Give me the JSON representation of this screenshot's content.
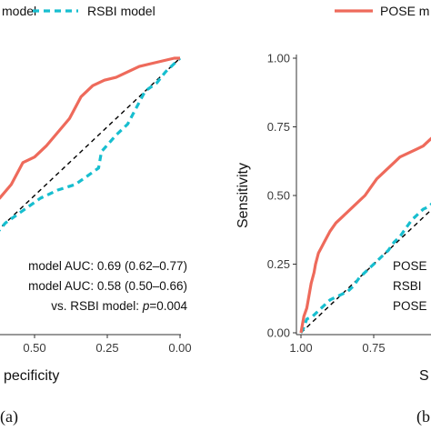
{
  "colors": {
    "pose": "#EE6A5B",
    "rsbi": "#17BECF",
    "chance": "#000000",
    "axis": "#333333"
  },
  "chart_data": [
    {
      "type": "line",
      "panel_label": "(a)",
      "legend": [
        {
          "label": "model",
          "series": "pose"
        },
        {
          "label": "RSBI model",
          "series": "rsbi"
        }
      ],
      "xlabel": "pecificity",
      "x_ticks": [
        "0.50",
        "0.25",
        "0.00"
      ],
      "xlim": [
        1,
        0
      ],
      "ylim": [
        0,
        1
      ],
      "annotations": [
        {
          "parts": [
            {
              "text": "model AUC: 0.69 (0.62–0.77)"
            }
          ]
        },
        {
          "parts": [
            {
              "text": "model AUC: 0.58 (0.50–0.66)"
            }
          ]
        },
        {
          "parts": [
            {
              "text": "vs. RSBI model: "
            },
            {
              "text": "p",
              "italic": true
            },
            {
              "text": "=0.004"
            }
          ]
        }
      ],
      "series": [
        {
          "key": "pose",
          "style": "solid",
          "points": [
            [
              1,
              0
            ],
            [
              0.99,
              0.03
            ],
            [
              0.98,
              0.07
            ],
            [
              0.97,
              0.1
            ],
            [
              0.96,
              0.13
            ],
            [
              0.94,
              0.16
            ],
            [
              0.92,
              0.2
            ],
            [
              0.9,
              0.24
            ],
            [
              0.88,
              0.27
            ],
            [
              0.86,
              0.3
            ],
            [
              0.85,
              0.33
            ],
            [
              0.84,
              0.36
            ],
            [
              0.82,
              0.37
            ],
            [
              0.8,
              0.37
            ],
            [
              0.78,
              0.38
            ],
            [
              0.76,
              0.4
            ],
            [
              0.74,
              0.42
            ],
            [
              0.7,
              0.42
            ],
            [
              0.66,
              0.46
            ],
            [
              0.62,
              0.49
            ],
            [
              0.58,
              0.54
            ],
            [
              0.54,
              0.62
            ],
            [
              0.5,
              0.64
            ],
            [
              0.46,
              0.68
            ],
            [
              0.42,
              0.73
            ],
            [
              0.38,
              0.78
            ],
            [
              0.34,
              0.86
            ],
            [
              0.3,
              0.9
            ],
            [
              0.26,
              0.92
            ],
            [
              0.22,
              0.93
            ],
            [
              0.18,
              0.95
            ],
            [
              0.14,
              0.97
            ],
            [
              0.1,
              0.98
            ],
            [
              0.06,
              0.99
            ],
            [
              0.02,
              1
            ],
            [
              0,
              1
            ]
          ]
        },
        {
          "key": "rsbi",
          "style": "dashed",
          "points": [
            [
              1,
              0
            ],
            [
              0.99,
              0.02
            ],
            [
              0.97,
              0.05
            ],
            [
              0.95,
              0.08
            ],
            [
              0.92,
              0.1
            ],
            [
              0.9,
              0.12
            ],
            [
              0.88,
              0.12
            ],
            [
              0.85,
              0.15
            ],
            [
              0.8,
              0.2
            ],
            [
              0.76,
              0.2
            ],
            [
              0.72,
              0.27
            ],
            [
              0.68,
              0.33
            ],
            [
              0.64,
              0.35
            ],
            [
              0.6,
              0.4
            ],
            [
              0.56,
              0.43
            ],
            [
              0.52,
              0.46
            ],
            [
              0.48,
              0.49
            ],
            [
              0.42,
              0.52
            ],
            [
              0.36,
              0.54
            ],
            [
              0.32,
              0.57
            ],
            [
              0.28,
              0.6
            ],
            [
              0.27,
              0.66
            ],
            [
              0.22,
              0.72
            ],
            [
              0.18,
              0.76
            ],
            [
              0.15,
              0.82
            ],
            [
              0.12,
              0.88
            ],
            [
              0.08,
              0.91
            ],
            [
              0.05,
              0.95
            ],
            [
              0.02,
              0.98
            ],
            [
              0,
              1
            ]
          ]
        },
        {
          "key": "chance",
          "style": "dashed",
          "points": [
            [
              1,
              0
            ],
            [
              0,
              1
            ]
          ]
        }
      ]
    },
    {
      "type": "line",
      "panel_label": "(b",
      "legend": [
        {
          "label": "POSE m",
          "series": "pose"
        }
      ],
      "ylabel": "Sensitivity",
      "xlabel": "S",
      "y_ticks": [
        "0.00",
        "0.25",
        "0.50",
        "0.75",
        "1.00"
      ],
      "x_ticks": [
        "1.00",
        "0.75"
      ],
      "xlim": [
        1,
        0
      ],
      "ylim": [
        0,
        1
      ],
      "annotations": [
        {
          "parts": [
            {
              "text": "POSE"
            }
          ]
        },
        {
          "parts": [
            {
              "text": "RSBI"
            }
          ]
        },
        {
          "parts": [
            {
              "text": "POSE"
            }
          ]
        }
      ],
      "series": [
        {
          "key": "pose",
          "style": "solid",
          "points": [
            [
              1,
              0
            ],
            [
              0.995,
              0.03
            ],
            [
              0.99,
              0.06
            ],
            [
              0.98,
              0.09
            ],
            [
              0.975,
              0.12
            ],
            [
              0.97,
              0.15
            ],
            [
              0.965,
              0.18
            ],
            [
              0.96,
              0.2
            ],
            [
              0.955,
              0.22
            ],
            [
              0.95,
              0.25
            ],
            [
              0.945,
              0.27
            ],
            [
              0.94,
              0.29
            ],
            [
              0.93,
              0.31
            ],
            [
              0.92,
              0.33
            ],
            [
              0.91,
              0.35
            ],
            [
              0.9,
              0.37
            ],
            [
              0.88,
              0.4
            ],
            [
              0.86,
              0.42
            ],
            [
              0.84,
              0.44
            ],
            [
              0.82,
              0.46
            ],
            [
              0.8,
              0.48
            ],
            [
              0.78,
              0.5
            ],
            [
              0.76,
              0.53
            ],
            [
              0.74,
              0.56
            ],
            [
              0.72,
              0.58
            ],
            [
              0.7,
              0.6
            ],
            [
              0.68,
              0.62
            ],
            [
              0.66,
              0.64
            ],
            [
              0.64,
              0.65
            ],
            [
              0.62,
              0.66
            ],
            [
              0.6,
              0.67
            ],
            [
              0.58,
              0.68
            ],
            [
              0.56,
              0.7
            ],
            [
              0.54,
              0.72
            ],
            [
              0.52,
              0.74
            ]
          ]
        },
        {
          "key": "rsbi",
          "style": "dashed",
          "points": [
            [
              1,
              0
            ],
            [
              0.99,
              0.02
            ],
            [
              0.98,
              0.05
            ],
            [
              0.96,
              0.06
            ],
            [
              0.94,
              0.08
            ],
            [
              0.92,
              0.1
            ],
            [
              0.9,
              0.12
            ],
            [
              0.88,
              0.13
            ],
            [
              0.86,
              0.14
            ],
            [
              0.84,
              0.15
            ],
            [
              0.82,
              0.17
            ],
            [
              0.8,
              0.2
            ],
            [
              0.78,
              0.22
            ],
            [
              0.76,
              0.24
            ],
            [
              0.74,
              0.26
            ],
            [
              0.72,
              0.28
            ],
            [
              0.7,
              0.3
            ],
            [
              0.68,
              0.33
            ],
            [
              0.66,
              0.35
            ],
            [
              0.64,
              0.38
            ],
            [
              0.62,
              0.41
            ],
            [
              0.6,
              0.43
            ],
            [
              0.58,
              0.45
            ],
            [
              0.56,
              0.46
            ],
            [
              0.54,
              0.48
            ],
            [
              0.52,
              0.5
            ]
          ]
        },
        {
          "key": "chance",
          "style": "dashed",
          "points": [
            [
              1,
              0
            ],
            [
              0,
              1
            ]
          ]
        }
      ]
    }
  ]
}
